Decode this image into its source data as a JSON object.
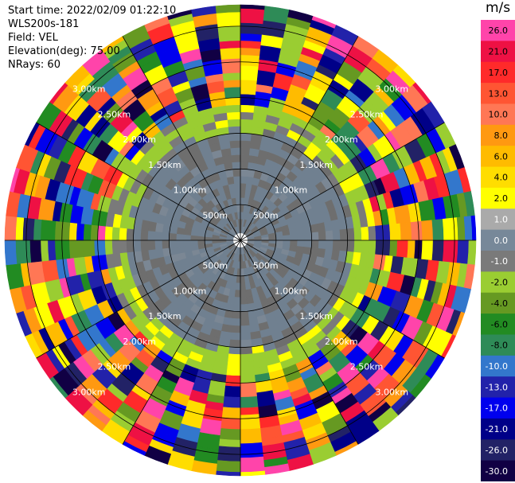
{
  "header": {
    "start_time": "Start time: 2022/02/09 01:22:10",
    "instrument": "WLS200s-181",
    "field": "Field: VEL",
    "elevation": "Elevation(deg): 75.00",
    "nrays": "NRays: 60"
  },
  "colorbar": {
    "unit": "m/s",
    "labels": [
      "26.0",
      "21.0",
      "17.0",
      "13.0",
      "10.0",
      "8.0",
      "6.0",
      "4.0",
      "2.0",
      "1.0",
      "0.0",
      "-1.0",
      "-2.0",
      "-4.0",
      "-6.0",
      "-8.0",
      "-10.0",
      "-13.0",
      "-17.0",
      "-21.0",
      "-26.0",
      "-30.0"
    ],
    "colors": [
      "#ff44aa",
      "#ee1144",
      "#ff2a2a",
      "#ff5533",
      "#ff7755",
      "#ff9911",
      "#ffbb00",
      "#ffdd00",
      "#ffff00",
      "#aaaaaa",
      "#778899",
      "#7a7a7a",
      "#9acd32",
      "#669922",
      "#228b22",
      "#2e8b57",
      "#3377cc",
      "#2222aa",
      "#0000ee",
      "#000088",
      "#222266",
      "#110044"
    ]
  },
  "chart_data": {
    "type": "heatmap",
    "projection": "polar PPI",
    "title": "",
    "field": "VEL",
    "units": "m/s",
    "nrays": 60,
    "elevation_deg": 75.0,
    "range_rings_km": [
      0.5,
      1.0,
      1.5,
      2.0,
      2.5,
      3.0
    ],
    "ring_labels": [
      "500m",
      "1.00km",
      "1.50km",
      "2.00km",
      "2.50km",
      "3.00km"
    ],
    "max_range_km": 3.3,
    "spoke_interval_deg": 30,
    "grid": true,
    "near_field_range_km": 1.6,
    "near_field_value_ms": 0.0,
    "far_field_dominant_values_ms": [
      -30,
      -26,
      -21,
      -17,
      -13,
      -10,
      -6,
      -4,
      -2,
      0,
      2,
      4,
      6,
      8,
      10,
      13,
      17,
      21,
      26
    ]
  }
}
